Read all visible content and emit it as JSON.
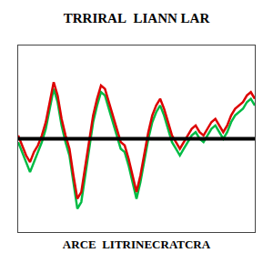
{
  "chart_data": {
    "type": "line",
    "title": "TRRIRAL  LIANN LAR",
    "xlabel": "ARCE  LITRINECRATCRA",
    "x": [
      0,
      1,
      2,
      3,
      4,
      5,
      6,
      7,
      8,
      9,
      10,
      11,
      12,
      13,
      14,
      15,
      16,
      17,
      18,
      19,
      20,
      21,
      22,
      23,
      24,
      25,
      26,
      27,
      28,
      29,
      30,
      31,
      32,
      33,
      34,
      35,
      36,
      37,
      38,
      39,
      40,
      41,
      42,
      43,
      44,
      45,
      46,
      47,
      48,
      49,
      50,
      51,
      52,
      53,
      54,
      55,
      56,
      57,
      58,
      59,
      60
    ],
    "series": [
      {
        "color": "#dd0000",
        "values": [
          0.05,
          -0.1,
          -0.25,
          -0.35,
          -0.2,
          -0.1,
          0.05,
          0.25,
          0.55,
          0.85,
          0.65,
          0.3,
          0.05,
          -0.15,
          -0.55,
          -0.9,
          -0.8,
          -0.4,
          0.0,
          0.35,
          0.6,
          0.8,
          0.75,
          0.55,
          0.35,
          0.15,
          -0.05,
          -0.1,
          -0.3,
          -0.55,
          -0.8,
          -0.55,
          -0.2,
          0.1,
          0.35,
          0.5,
          0.6,
          0.45,
          0.25,
          0.05,
          -0.05,
          -0.15,
          -0.05,
          0.05,
          0.15,
          0.2,
          0.1,
          0.05,
          0.15,
          0.25,
          0.3,
          0.2,
          0.1,
          0.2,
          0.35,
          0.45,
          0.5,
          0.55,
          0.65,
          0.7,
          0.6
        ]
      },
      {
        "color": "#00bb44",
        "values": [
          -0.05,
          -0.2,
          -0.35,
          -0.5,
          -0.35,
          -0.2,
          -0.05,
          0.15,
          0.45,
          0.75,
          0.55,
          0.2,
          -0.05,
          -0.25,
          -0.65,
          -1.05,
          -0.95,
          -0.55,
          -0.1,
          0.25,
          0.5,
          0.7,
          0.65,
          0.45,
          0.25,
          0.05,
          -0.15,
          -0.2,
          -0.4,
          -0.65,
          -0.9,
          -0.65,
          -0.3,
          0.0,
          0.25,
          0.4,
          0.5,
          0.35,
          0.15,
          -0.05,
          -0.15,
          -0.25,
          -0.15,
          -0.05,
          0.05,
          0.1,
          0.0,
          -0.05,
          0.05,
          0.15,
          0.2,
          0.1,
          0.0,
          0.1,
          0.25,
          0.35,
          0.4,
          0.45,
          0.55,
          0.6,
          0.5
        ]
      }
    ],
    "hline": {
      "y": 0.0,
      "color": "#000000"
    },
    "xlim": [
      0,
      60
    ],
    "ylim": [
      -1.4,
      1.4
    ],
    "xticks": [],
    "yticks": [],
    "tick_labels": false,
    "grid": false
  }
}
